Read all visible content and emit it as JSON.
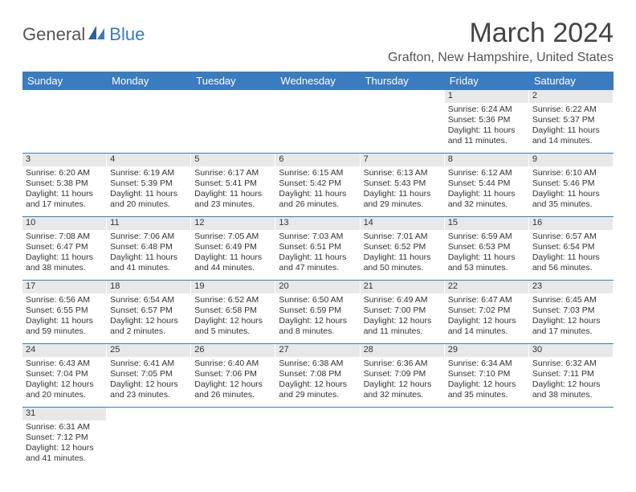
{
  "logo": {
    "general": "General",
    "blue": "Blue"
  },
  "header": {
    "month_title": "March 2024",
    "location": "Grafton, New Hampshire, United States"
  },
  "weekdays": [
    "Sunday",
    "Monday",
    "Tuesday",
    "Wednesday",
    "Thursday",
    "Friday",
    "Saturday"
  ],
  "colors": {
    "header_bg": "#3b7bbf",
    "header_text": "#ffffff",
    "daybar_bg": "#e8e8e8",
    "row_border": "#3b7bbf"
  },
  "weeks": [
    [
      {
        "empty": true
      },
      {
        "empty": true
      },
      {
        "empty": true
      },
      {
        "empty": true
      },
      {
        "empty": true
      },
      {
        "n": "1",
        "sr": "Sunrise: 6:24 AM",
        "ss": "Sunset: 5:36 PM",
        "d1": "Daylight: 11 hours",
        "d2": "and 11 minutes."
      },
      {
        "n": "2",
        "sr": "Sunrise: 6:22 AM",
        "ss": "Sunset: 5:37 PM",
        "d1": "Daylight: 11 hours",
        "d2": "and 14 minutes."
      }
    ],
    [
      {
        "n": "3",
        "sr": "Sunrise: 6:20 AM",
        "ss": "Sunset: 5:38 PM",
        "d1": "Daylight: 11 hours",
        "d2": "and 17 minutes."
      },
      {
        "n": "4",
        "sr": "Sunrise: 6:19 AM",
        "ss": "Sunset: 5:39 PM",
        "d1": "Daylight: 11 hours",
        "d2": "and 20 minutes."
      },
      {
        "n": "5",
        "sr": "Sunrise: 6:17 AM",
        "ss": "Sunset: 5:41 PM",
        "d1": "Daylight: 11 hours",
        "d2": "and 23 minutes."
      },
      {
        "n": "6",
        "sr": "Sunrise: 6:15 AM",
        "ss": "Sunset: 5:42 PM",
        "d1": "Daylight: 11 hours",
        "d2": "and 26 minutes."
      },
      {
        "n": "7",
        "sr": "Sunrise: 6:13 AM",
        "ss": "Sunset: 5:43 PM",
        "d1": "Daylight: 11 hours",
        "d2": "and 29 minutes."
      },
      {
        "n": "8",
        "sr": "Sunrise: 6:12 AM",
        "ss": "Sunset: 5:44 PM",
        "d1": "Daylight: 11 hours",
        "d2": "and 32 minutes."
      },
      {
        "n": "9",
        "sr": "Sunrise: 6:10 AM",
        "ss": "Sunset: 5:46 PM",
        "d1": "Daylight: 11 hours",
        "d2": "and 35 minutes."
      }
    ],
    [
      {
        "n": "10",
        "sr": "Sunrise: 7:08 AM",
        "ss": "Sunset: 6:47 PM",
        "d1": "Daylight: 11 hours",
        "d2": "and 38 minutes."
      },
      {
        "n": "11",
        "sr": "Sunrise: 7:06 AM",
        "ss": "Sunset: 6:48 PM",
        "d1": "Daylight: 11 hours",
        "d2": "and 41 minutes."
      },
      {
        "n": "12",
        "sr": "Sunrise: 7:05 AM",
        "ss": "Sunset: 6:49 PM",
        "d1": "Daylight: 11 hours",
        "d2": "and 44 minutes."
      },
      {
        "n": "13",
        "sr": "Sunrise: 7:03 AM",
        "ss": "Sunset: 6:51 PM",
        "d1": "Daylight: 11 hours",
        "d2": "and 47 minutes."
      },
      {
        "n": "14",
        "sr": "Sunrise: 7:01 AM",
        "ss": "Sunset: 6:52 PM",
        "d1": "Daylight: 11 hours",
        "d2": "and 50 minutes."
      },
      {
        "n": "15",
        "sr": "Sunrise: 6:59 AM",
        "ss": "Sunset: 6:53 PM",
        "d1": "Daylight: 11 hours",
        "d2": "and 53 minutes."
      },
      {
        "n": "16",
        "sr": "Sunrise: 6:57 AM",
        "ss": "Sunset: 6:54 PM",
        "d1": "Daylight: 11 hours",
        "d2": "and 56 minutes."
      }
    ],
    [
      {
        "n": "17",
        "sr": "Sunrise: 6:56 AM",
        "ss": "Sunset: 6:55 PM",
        "d1": "Daylight: 11 hours",
        "d2": "and 59 minutes."
      },
      {
        "n": "18",
        "sr": "Sunrise: 6:54 AM",
        "ss": "Sunset: 6:57 PM",
        "d1": "Daylight: 12 hours",
        "d2": "and 2 minutes."
      },
      {
        "n": "19",
        "sr": "Sunrise: 6:52 AM",
        "ss": "Sunset: 6:58 PM",
        "d1": "Daylight: 12 hours",
        "d2": "and 5 minutes."
      },
      {
        "n": "20",
        "sr": "Sunrise: 6:50 AM",
        "ss": "Sunset: 6:59 PM",
        "d1": "Daylight: 12 hours",
        "d2": "and 8 minutes."
      },
      {
        "n": "21",
        "sr": "Sunrise: 6:49 AM",
        "ss": "Sunset: 7:00 PM",
        "d1": "Daylight: 12 hours",
        "d2": "and 11 minutes."
      },
      {
        "n": "22",
        "sr": "Sunrise: 6:47 AM",
        "ss": "Sunset: 7:02 PM",
        "d1": "Daylight: 12 hours",
        "d2": "and 14 minutes."
      },
      {
        "n": "23",
        "sr": "Sunrise: 6:45 AM",
        "ss": "Sunset: 7:03 PM",
        "d1": "Daylight: 12 hours",
        "d2": "and 17 minutes."
      }
    ],
    [
      {
        "n": "24",
        "sr": "Sunrise: 6:43 AM",
        "ss": "Sunset: 7:04 PM",
        "d1": "Daylight: 12 hours",
        "d2": "and 20 minutes."
      },
      {
        "n": "25",
        "sr": "Sunrise: 6:41 AM",
        "ss": "Sunset: 7:05 PM",
        "d1": "Daylight: 12 hours",
        "d2": "and 23 minutes."
      },
      {
        "n": "26",
        "sr": "Sunrise: 6:40 AM",
        "ss": "Sunset: 7:06 PM",
        "d1": "Daylight: 12 hours",
        "d2": "and 26 minutes."
      },
      {
        "n": "27",
        "sr": "Sunrise: 6:38 AM",
        "ss": "Sunset: 7:08 PM",
        "d1": "Daylight: 12 hours",
        "d2": "and 29 minutes."
      },
      {
        "n": "28",
        "sr": "Sunrise: 6:36 AM",
        "ss": "Sunset: 7:09 PM",
        "d1": "Daylight: 12 hours",
        "d2": "and 32 minutes."
      },
      {
        "n": "29",
        "sr": "Sunrise: 6:34 AM",
        "ss": "Sunset: 7:10 PM",
        "d1": "Daylight: 12 hours",
        "d2": "and 35 minutes."
      },
      {
        "n": "30",
        "sr": "Sunrise: 6:32 AM",
        "ss": "Sunset: 7:11 PM",
        "d1": "Daylight: 12 hours",
        "d2": "and 38 minutes."
      }
    ],
    [
      {
        "n": "31",
        "sr": "Sunrise: 6:31 AM",
        "ss": "Sunset: 7:12 PM",
        "d1": "Daylight: 12 hours",
        "d2": "and 41 minutes."
      },
      {
        "empty": true
      },
      {
        "empty": true
      },
      {
        "empty": true
      },
      {
        "empty": true
      },
      {
        "empty": true
      },
      {
        "empty": true
      }
    ]
  ]
}
